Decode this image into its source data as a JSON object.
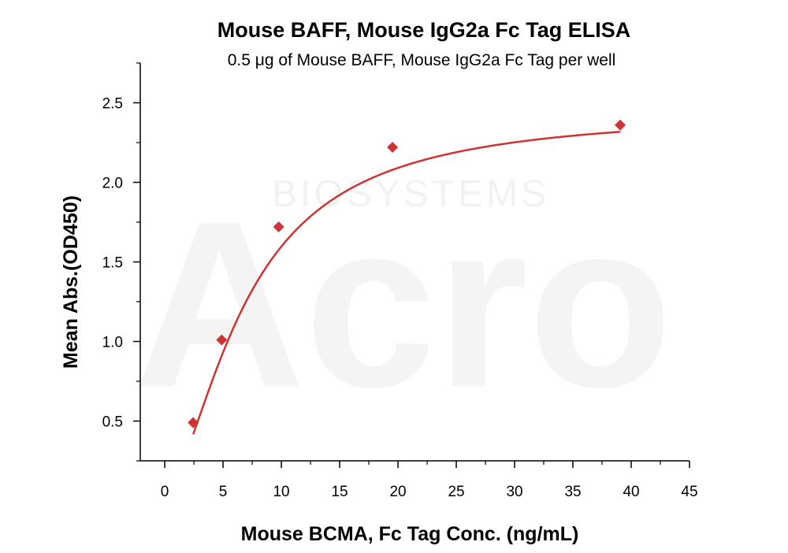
{
  "watermark": {
    "logo": "Acro",
    "sub": "BIOSYSTEMS"
  },
  "chart_data": {
    "type": "scatter",
    "title": "Mouse BAFF, Mouse IgG2a Fc Tag ELISA",
    "subtitle": "0.5 μg of Mouse BAFF, Mouse IgG2a Fc Tag per well",
    "xlabel": "Mouse BCMA, Fc Tag Conc. (ng/mL)",
    "ylabel": "Mean Abs.(OD450)",
    "xlim": [
      -2.1,
      45
    ],
    "ylim": [
      0.25,
      2.75
    ],
    "xticks": [
      0,
      5,
      10,
      15,
      20,
      25,
      30,
      35,
      40,
      45
    ],
    "yticks": [
      0.5,
      1.0,
      1.5,
      2.0,
      2.5
    ],
    "ytick_labels": [
      "0.5",
      "1.0",
      "1.5",
      "2.0",
      "2.5"
    ],
    "grid": false,
    "colors": {
      "marker": "#cc3333",
      "curve": "#cc3333"
    },
    "series": [
      {
        "points": [
          {
            "x": 2.44,
            "y": 0.49
          },
          {
            "x": 4.88,
            "y": 1.01
          },
          {
            "x": 9.77,
            "y": 1.72
          },
          {
            "x": 19.53,
            "y": 2.22
          },
          {
            "x": 39.06,
            "y": 2.36
          }
        ]
      }
    ]
  }
}
